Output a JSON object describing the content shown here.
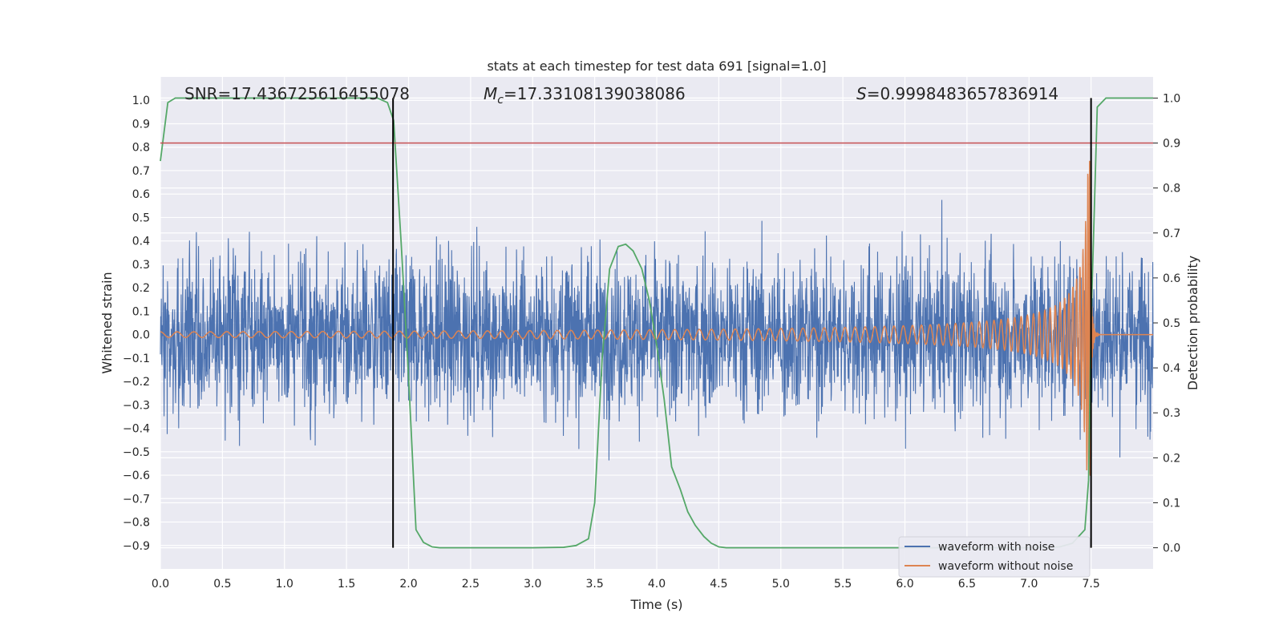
{
  "chart_data": {
    "type": "line",
    "title": "stats at each timestep for test data 691 [signal=1.0]",
    "xlabel": "Time (s)",
    "ylabel": "Whitened strain",
    "y2label": "Detection probability",
    "xlim": [
      0.0,
      8.0
    ],
    "ylim": [
      -1.0,
      1.1
    ],
    "y2lim": [
      -0.047,
      1.047
    ],
    "xticks": [
      "0.0",
      "0.5",
      "1.0",
      "1.5",
      "2.0",
      "2.5",
      "3.0",
      "3.5",
      "4.0",
      "4.5",
      "5.0",
      "5.5",
      "6.0",
      "6.5",
      "7.0",
      "7.5"
    ],
    "yticks": [
      "−0.9",
      "−0.8",
      "−0.7",
      "−0.6",
      "−0.5",
      "−0.4",
      "−0.3",
      "−0.2",
      "−0.1",
      "0.0",
      "0.1",
      "0.2",
      "0.3",
      "0.4",
      "0.5",
      "0.6",
      "0.7",
      "0.8",
      "0.9",
      "1.0"
    ],
    "y2ticks": [
      "0.0",
      "0.1",
      "0.2",
      "0.3",
      "0.4",
      "0.5",
      "0.6",
      "0.7",
      "0.8",
      "0.9",
      "1.0"
    ],
    "grid": true,
    "legend_position": "lower-right",
    "annotations": {
      "snr": "SNR=17.436725616455078",
      "mc_symbol": "M",
      "mc_sub": "c",
      "mc_value": "=17.33108139038086",
      "s_symbol": "S",
      "s_value": "=0.9998483657836914"
    },
    "threshold_y2": 0.9,
    "vlines_x": [
      1.875,
      7.5
    ],
    "series": [
      {
        "name": "waveform with noise",
        "color": "#4c72b0",
        "noise_envelope": {
          "typical_amplitude": 0.4,
          "max_positive": 1.0,
          "min_negative": -0.81
        }
      },
      {
        "name": "waveform without noise",
        "color": "#dd8452",
        "chirp": {
          "start_amplitude": 0.012,
          "merger_time": 7.5,
          "peak_value": 0.75,
          "trough_value": -0.6
        }
      },
      {
        "name": "",
        "color": "#55a868",
        "axis": "right",
        "x": [
          0.0,
          0.06,
          0.12,
          0.25,
          0.5,
          1.0,
          1.5,
          1.75,
          1.83,
          1.88,
          1.94,
          2.0,
          2.06,
          2.12,
          2.19,
          2.25,
          2.5,
          3.0,
          3.25,
          3.35,
          3.45,
          3.5,
          3.56,
          3.62,
          3.69,
          3.75,
          3.81,
          3.88,
          3.94,
          4.0,
          4.06,
          4.12,
          4.19,
          4.25,
          4.31,
          4.38,
          4.44,
          4.5,
          4.56,
          4.62,
          5.0,
          6.0,
          7.0,
          7.25,
          7.35,
          7.45,
          7.48,
          7.5,
          7.55,
          7.62,
          7.75,
          8.0
        ],
        "values": [
          0.86,
          0.99,
          1.0,
          1.0,
          1.0,
          1.0,
          1.0,
          1.0,
          0.99,
          0.95,
          0.68,
          0.38,
          0.04,
          0.012,
          0.002,
          0.0,
          0.0,
          0.0,
          0.001,
          0.005,
          0.02,
          0.1,
          0.42,
          0.62,
          0.67,
          0.675,
          0.66,
          0.62,
          0.55,
          0.45,
          0.33,
          0.18,
          0.13,
          0.08,
          0.05,
          0.025,
          0.01,
          0.002,
          0.0,
          0.0,
          0.0,
          0.0,
          0.0,
          0.002,
          0.01,
          0.04,
          0.15,
          0.5,
          0.98,
          1.0,
          1.0,
          1.0
        ]
      }
    ]
  }
}
